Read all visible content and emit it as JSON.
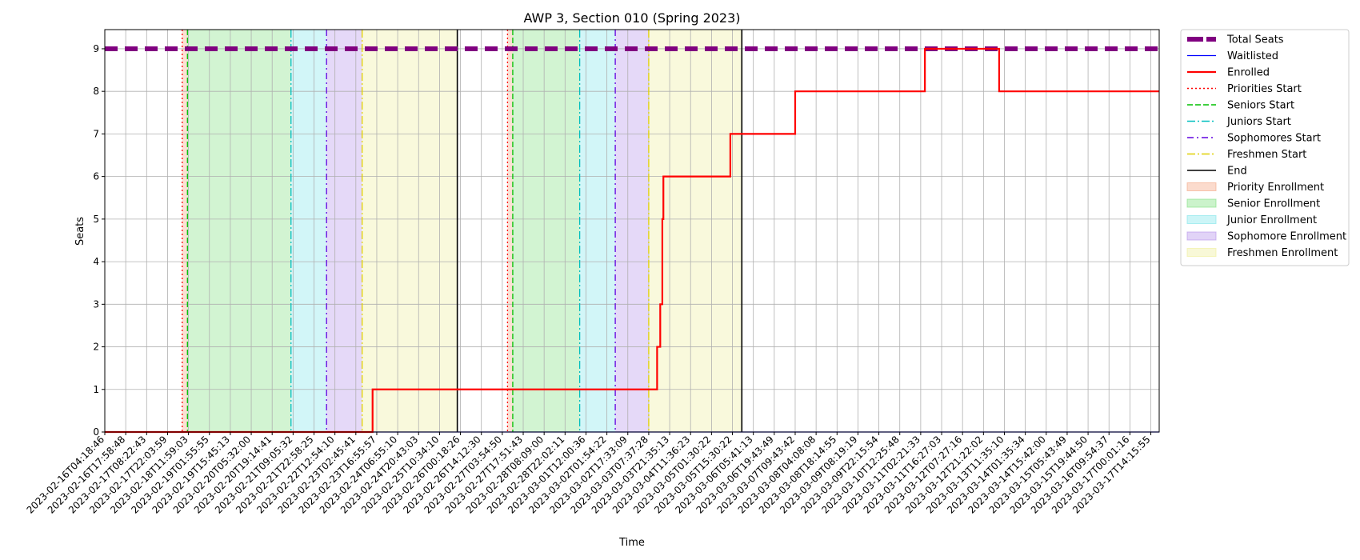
{
  "chart_data": {
    "type": "line",
    "title": "AWP 3, Section 010 (Spring 2023)",
    "xlabel": "Time",
    "ylabel": "Seats",
    "ylim": [
      0,
      9.45
    ],
    "yticks": [
      0,
      1,
      2,
      3,
      4,
      5,
      6,
      7,
      8,
      9
    ],
    "grid": true,
    "legend_position": "outside-right",
    "x_tick_labels": [
      "2023-02-16T04:18:46",
      "2023-02-16T17:58:48",
      "2023-02-17T08:22:43",
      "2023-02-17T22:03:59",
      "2023-02-18T11:59:03",
      "2023-02-19T01:55:55",
      "2023-02-19T15:45:13",
      "2023-02-20T05:32:00",
      "2023-02-20T19:14:41",
      "2023-02-21T09:05:32",
      "2023-02-21T22:58:25",
      "2023-02-22T12:54:10",
      "2023-02-23T02:45:41",
      "2023-02-23T16:55:57",
      "2023-02-24T06:55:10",
      "2023-02-24T20:43:03",
      "2023-02-25T10:34:10",
      "2023-02-26T00:18:26",
      "2023-02-26T14:12:30",
      "2023-02-27T03:54:50",
      "2023-02-27T17:51:43",
      "2023-02-28T08:09:00",
      "2023-02-28T22:02:11",
      "2023-03-01T12:00:36",
      "2023-03-02T01:54:22",
      "2023-03-02T17:33:09",
      "2023-03-03T07:37:28",
      "2023-03-03T21:35:13",
      "2023-03-04T11:36:23",
      "2023-03-05T01:30:22",
      "2023-03-05T15:30:22",
      "2023-03-06T05:41:13",
      "2023-03-06T19:43:49",
      "2023-03-07T09:43:42",
      "2023-03-08T04:08:08",
      "2023-03-08T18:14:55",
      "2023-03-09T08:19:19",
      "2023-03-09T22:15:54",
      "2023-03-10T12:25:48",
      "2023-03-11T02:21:33",
      "2023-03-11T16:27:03",
      "2023-03-12T07:27:16",
      "2023-03-12T21:22:02",
      "2023-03-13T11:35:10",
      "2023-03-14T01:35:34",
      "2023-03-14T15:42:00",
      "2023-03-15T05:43:49",
      "2023-03-15T19:44:50",
      "2023-03-16T09:54:37",
      "2023-03-17T00:01:16",
      "2023-03-17T14:15:55"
    ],
    "x_range": [
      0,
      50.4
    ],
    "series": [
      {
        "name": "Total Seats",
        "color": "#800080",
        "style": "dashed-thick",
        "x": [
          0,
          50.4
        ],
        "y": [
          9,
          9
        ]
      },
      {
        "name": "Waitlisted",
        "color": "#0000ff",
        "style": "solid-thin",
        "x": [
          0,
          50.4
        ],
        "y": [
          0,
          0
        ]
      },
      {
        "name": "Enrolled",
        "color": "#ff0000",
        "style": "solid-thick",
        "x": [
          0,
          12.8,
          12.8,
          26.4,
          26.4,
          26.55,
          26.55,
          26.65,
          26.65,
          26.7,
          26.7,
          26.75,
          26.75,
          29.9,
          29.9,
          33.0,
          33.0,
          39.2,
          39.2,
          42.75,
          42.75,
          50.4
        ],
        "y": [
          0,
          0,
          1,
          1,
          2,
          2,
          3,
          3,
          5,
          5,
          6,
          6,
          6,
          6,
          7,
          7,
          8,
          8,
          9,
          9,
          8,
          8
        ]
      }
    ],
    "vlines": [
      {
        "name": "Priorities Start",
        "color": "#ff0000",
        "style": "dotted",
        "x": [
          3.7,
          19.25
        ]
      },
      {
        "name": "Seniors Start",
        "color": "#00c000",
        "style": "dashed",
        "x": [
          3.95,
          19.5
        ]
      },
      {
        "name": "Juniors Start",
        "color": "#00bfbf",
        "style": "dashdot",
        "x": [
          8.9,
          22.7
        ]
      },
      {
        "name": "Sophomores Start",
        "color": "#6000e0",
        "style": "loose-dashdot",
        "x": [
          10.6,
          24.4
        ]
      },
      {
        "name": "Freshmen Start",
        "color": "#e0d000",
        "style": "dashdot",
        "x": [
          12.3,
          26.0
        ]
      },
      {
        "name": "End",
        "color": "#000000",
        "style": "solid",
        "x": [
          16.85,
          30.45
        ]
      }
    ],
    "spans": [
      {
        "name": "Priority Enrollment",
        "color": "#f4a582",
        "ranges": [
          [
            3.7,
            3.95
          ],
          [
            19.25,
            19.5
          ]
        ]
      },
      {
        "name": "Senior Enrollment",
        "color": "#7ee07e",
        "ranges": [
          [
            3.95,
            8.9
          ],
          [
            19.5,
            22.7
          ]
        ]
      },
      {
        "name": "Junior Enrollment",
        "color": "#7fe5ea",
        "ranges": [
          [
            8.9,
            10.6
          ],
          [
            22.7,
            24.4
          ]
        ]
      },
      {
        "name": "Sophomore Enrollment",
        "color": "#b491ea",
        "ranges": [
          [
            10.6,
            12.3
          ],
          [
            24.4,
            26.0
          ]
        ]
      },
      {
        "name": "Freshmen Enrollment",
        "color": "#eeee9a",
        "ranges": [
          [
            12.3,
            16.85
          ],
          [
            26.0,
            30.45
          ]
        ]
      }
    ],
    "legend": [
      {
        "label": "Total Seats",
        "kind": "line",
        "color": "#800080",
        "style": "dashed-thick"
      },
      {
        "label": "Waitlisted",
        "kind": "line",
        "color": "#0000ff",
        "style": "solid-thin"
      },
      {
        "label": "Enrolled",
        "kind": "line",
        "color": "#ff0000",
        "style": "solid-thick"
      },
      {
        "label": "Priorities Start",
        "kind": "line",
        "color": "#ff0000",
        "style": "dotted"
      },
      {
        "label": "Seniors Start",
        "kind": "line",
        "color": "#00c000",
        "style": "dashed"
      },
      {
        "label": "Juniors Start",
        "kind": "line",
        "color": "#00bfbf",
        "style": "dashdot"
      },
      {
        "label": "Sophomores Start",
        "kind": "line",
        "color": "#6000e0",
        "style": "loose-dashdot"
      },
      {
        "label": "Freshmen Start",
        "kind": "line",
        "color": "#e0d000",
        "style": "dashdot"
      },
      {
        "label": "End",
        "kind": "line",
        "color": "#000000",
        "style": "solid"
      },
      {
        "label": "Priority Enrollment",
        "kind": "patch",
        "color": "#f4a582"
      },
      {
        "label": "Senior Enrollment",
        "kind": "patch",
        "color": "#7ee07e"
      },
      {
        "label": "Junior Enrollment",
        "kind": "patch",
        "color": "#7fe5ea"
      },
      {
        "label": "Sophomore Enrollment",
        "kind": "patch",
        "color": "#b491ea"
      },
      {
        "label": "Freshmen Enrollment",
        "kind": "patch",
        "color": "#eeee9a"
      }
    ]
  }
}
